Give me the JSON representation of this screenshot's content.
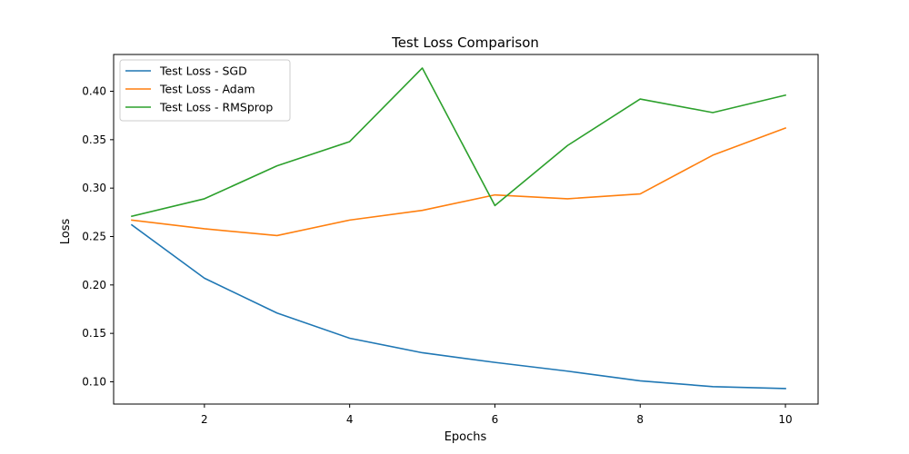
{
  "chart_data": {
    "type": "line",
    "title": "Test Loss Comparison",
    "xlabel": "Epochs",
    "ylabel": "Loss",
    "x": [
      1,
      2,
      3,
      4,
      5,
      6,
      7,
      8,
      9,
      10
    ],
    "xlim": [
      0.75,
      10.45
    ],
    "ylim": [
      0.077,
      0.438
    ],
    "xticks": [
      2,
      4,
      6,
      8,
      10
    ],
    "yticks": [
      0.1,
      0.15,
      0.2,
      0.25,
      0.3,
      0.35,
      0.4
    ],
    "ytick_labels": [
      "0.10",
      "0.15",
      "0.20",
      "0.25",
      "0.30",
      "0.35",
      "0.40"
    ],
    "grid": false,
    "legend_position": "top-left",
    "series": [
      {
        "name": "Test Loss - SGD",
        "color": "#1f77b4",
        "values": [
          0.262,
          0.207,
          0.171,
          0.145,
          0.13,
          0.12,
          0.111,
          0.101,
          0.095,
          0.093
        ]
      },
      {
        "name": "Test Loss - Adam",
        "color": "#ff7f0e",
        "values": [
          0.267,
          0.258,
          0.251,
          0.267,
          0.277,
          0.293,
          0.289,
          0.294,
          0.334,
          0.362
        ]
      },
      {
        "name": "Test Loss - RMSprop",
        "color": "#2ca02c",
        "values": [
          0.271,
          0.289,
          0.323,
          0.348,
          0.424,
          0.282,
          0.344,
          0.392,
          0.378,
          0.396
        ]
      }
    ]
  }
}
